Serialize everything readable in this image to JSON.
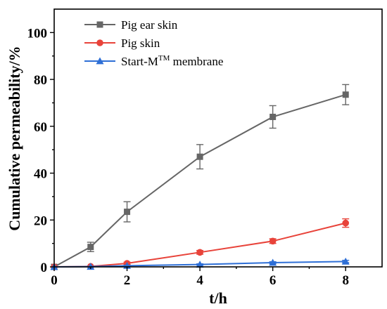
{
  "chart_data": {
    "type": "line",
    "xlabel": "t/h",
    "ylabel": "Cumulative permeability/%",
    "xlim": [
      0,
      9
    ],
    "ylim": [
      0,
      110
    ],
    "xticks": [
      0,
      2,
      4,
      6,
      8
    ],
    "yticks": [
      0,
      20,
      40,
      60,
      80,
      100
    ],
    "legend_position": "top-left",
    "grid": false,
    "series": [
      {
        "name": "Pig ear skin",
        "marker": "square",
        "color": "#666666",
        "x": [
          0,
          1,
          2,
          4,
          6,
          8
        ],
        "y": [
          0,
          8.5,
          23.5,
          47,
          64,
          73.5
        ],
        "err": [
          0,
          2.0,
          4.3,
          5.2,
          4.8,
          4.3
        ]
      },
      {
        "name": "Pig skin",
        "marker": "circle",
        "color": "#e8433a",
        "x": [
          0,
          1,
          2,
          4,
          6,
          8
        ],
        "y": [
          0,
          0.2,
          1.5,
          6.2,
          11,
          18.7
        ],
        "err": [
          0,
          0.2,
          0.5,
          0.8,
          1.0,
          1.8
        ]
      },
      {
        "name": "Start-M",
        "name_sup": "TM",
        "name_suffix": " membrane",
        "marker": "triangle",
        "color": "#2e6fd6",
        "x": [
          0,
          1,
          2,
          4,
          6,
          8
        ],
        "y": [
          0,
          0.1,
          0.5,
          1.0,
          1.8,
          2.3
        ],
        "err": [
          0,
          0.1,
          0.2,
          0.3,
          0.4,
          0.5
        ]
      }
    ]
  }
}
